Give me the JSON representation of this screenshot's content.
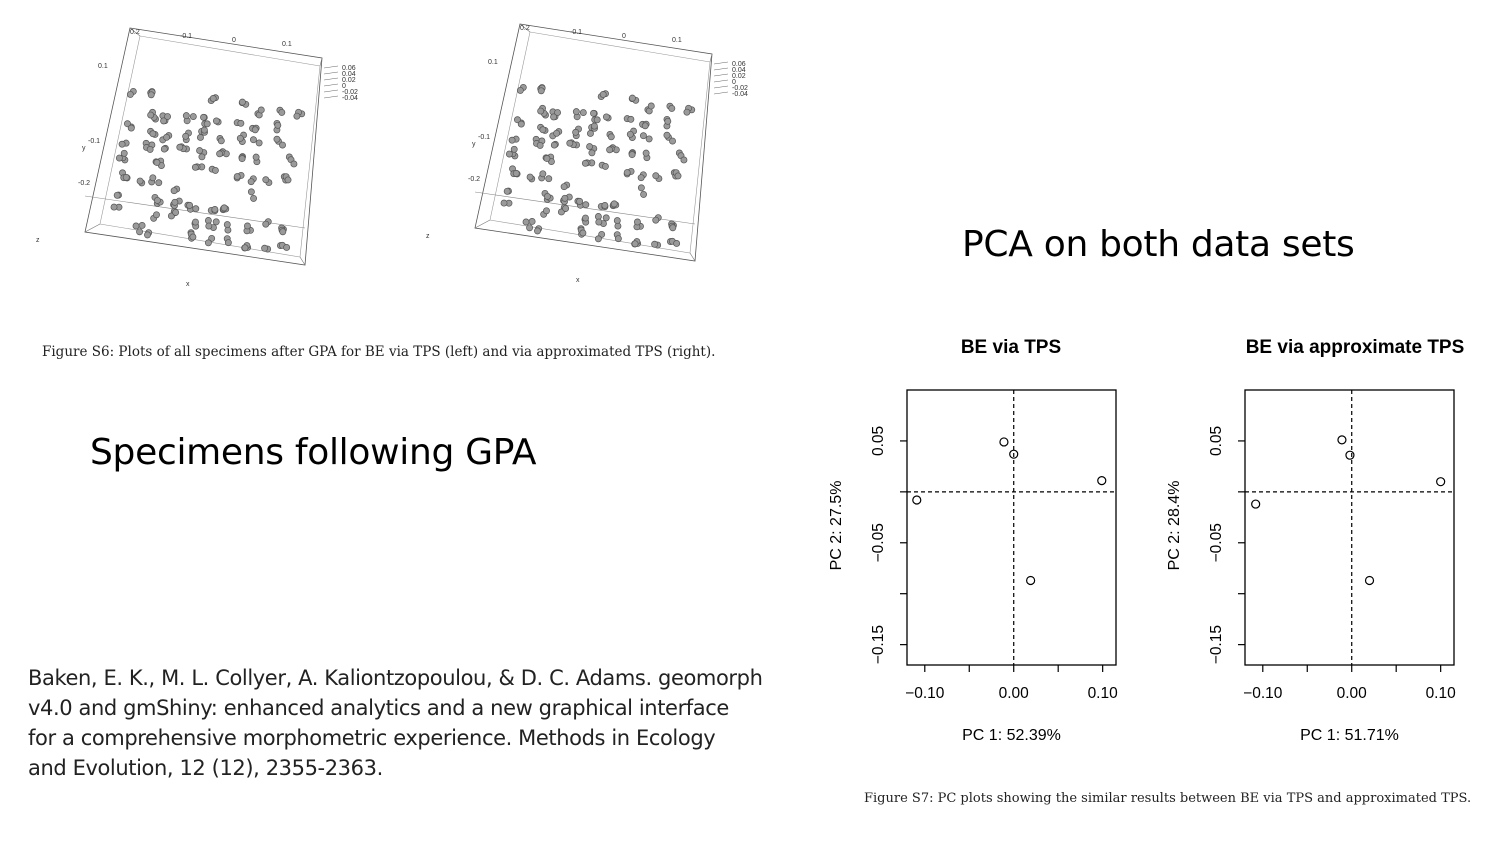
{
  "slide": {
    "title_right": "PCA on both data sets",
    "title_left": "Specimens following GPA",
    "citation_lines": [
      "Baken, E. K., M. L. Collyer, A. Kaliontzopoulou, & D. C. Adams. geomorph",
      "v4.0 and gmShiny: enhanced analytics and a new graphical interface",
      "for a comprehensive morphometric experience. Methods in Ecology",
      "and Evolution, 12 (12), 2355-2363."
    ]
  },
  "figure_s6": {
    "caption": "Figure S6: Plots of all specimens after GPA for BE via TPS (left) and via approximated TPS (right).",
    "left_plot": {
      "top_ticks": [
        "0.2",
        "-0.1",
        "0",
        "0.1"
      ],
      "left_ticks": [
        "0.1",
        "-0.1",
        "-0.2"
      ],
      "y_label": "y",
      "z_label": "z",
      "x_label": "x",
      "z_ticks": [
        "0.06",
        "0.04",
        "0.02",
        "0",
        "-0.02",
        "-0.04"
      ]
    },
    "right_plot": {
      "top_ticks": [
        "0.2",
        "-0.1",
        "0",
        "0.1"
      ],
      "left_ticks": [
        "0.1",
        "-0.1",
        "-0.2"
      ],
      "y_label": "y",
      "z_label": "z",
      "x_label": "x",
      "z_ticks": [
        "0.06",
        "0.04",
        "0.02",
        "0",
        "-0.02",
        "-0.04"
      ]
    }
  },
  "figure_s7": {
    "caption": "Figure S7: PC plots showing the similar results between BE via TPS and approximated TPS."
  },
  "chart_data": [
    {
      "type": "scatter",
      "title": "BE via TPS",
      "xlabel": "PC 1: 52.39%",
      "ylabel": "PC 2: 27.5%",
      "xlim": [
        -0.12,
        0.115
      ],
      "ylim": [
        -0.17,
        0.1
      ],
      "x_ticks": [
        -0.1,
        -0.05,
        0.0,
        0.05,
        0.1
      ],
      "x_tick_labels": [
        "−0.10",
        "",
        "0.00",
        "",
        "0.10"
      ],
      "y_ticks": [
        -0.15,
        -0.1,
        -0.05,
        0.0,
        0.05
      ],
      "y_tick_labels": [
        "−0.15",
        "",
        "−0.05",
        "",
        "0.05"
      ],
      "reference_lines": {
        "x": 0,
        "y": 0,
        "style": "dashed"
      },
      "points": [
        {
          "x": -0.109,
          "y": -0.008
        },
        {
          "x": -0.011,
          "y": 0.049
        },
        {
          "x": 0.0,
          "y": 0.037
        },
        {
          "x": 0.099,
          "y": 0.011
        },
        {
          "x": 0.019,
          "y": -0.087
        }
      ]
    },
    {
      "type": "scatter",
      "title": "BE via approximate TPS",
      "xlabel": "PC 1: 51.71%",
      "ylabel": "PC 2: 28.4%",
      "xlim": [
        -0.12,
        0.115
      ],
      "ylim": [
        -0.17,
        0.1
      ],
      "x_ticks": [
        -0.1,
        -0.05,
        0.0,
        0.05,
        0.1
      ],
      "x_tick_labels": [
        "−0.10",
        "",
        "0.00",
        "",
        "0.10"
      ],
      "y_ticks": [
        -0.15,
        -0.1,
        -0.05,
        0.0,
        0.05
      ],
      "y_tick_labels": [
        "−0.15",
        "",
        "−0.05",
        "",
        "0.05"
      ],
      "reference_lines": {
        "x": 0,
        "y": 0,
        "style": "dashed"
      },
      "points": [
        {
          "x": -0.108,
          "y": -0.012
        },
        {
          "x": -0.011,
          "y": 0.051
        },
        {
          "x": -0.002,
          "y": 0.036
        },
        {
          "x": 0.1,
          "y": 0.01
        },
        {
          "x": 0.02,
          "y": -0.087
        }
      ]
    }
  ]
}
